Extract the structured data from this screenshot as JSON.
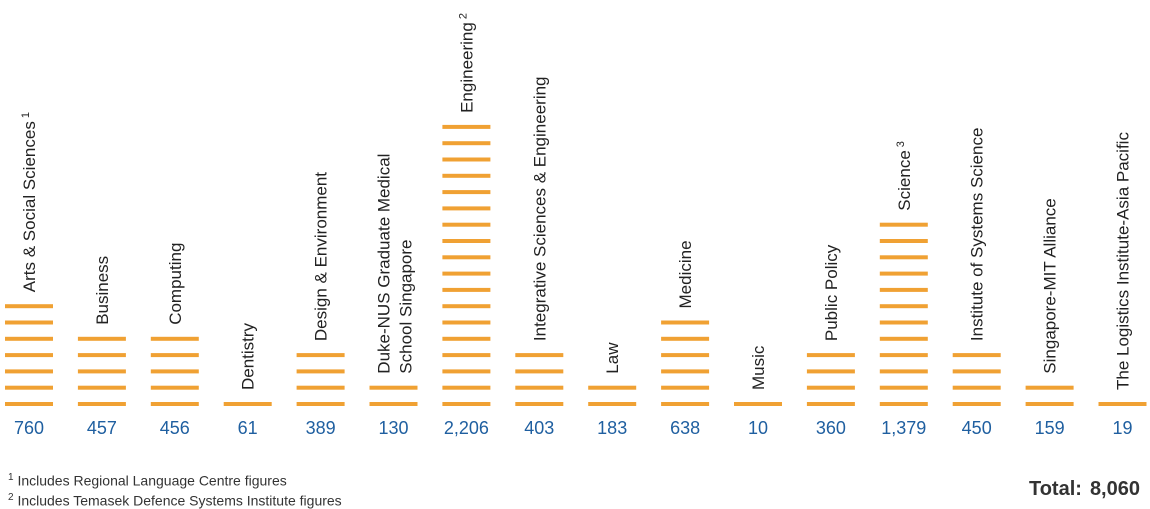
{
  "chart_data": {
    "type": "bar",
    "categories": [
      {
        "label": "Arts & Social Sciences",
        "sup": "1",
        "value": 760,
        "display": "760"
      },
      {
        "label": "Business",
        "sup": "",
        "value": 457,
        "display": "457"
      },
      {
        "label": "Computing",
        "sup": "",
        "value": 456,
        "display": "456"
      },
      {
        "label": "Dentistry",
        "sup": "",
        "value": 61,
        "display": "61"
      },
      {
        "label": "Design & Environment",
        "sup": "",
        "value": 389,
        "display": "389"
      },
      {
        "label": [
          "Duke-NUS Graduate Medical",
          "School Singapore"
        ],
        "sup": "",
        "value": 130,
        "display": "130"
      },
      {
        "label": "Engineering",
        "sup": "2",
        "value": 2206,
        "display": "2,206"
      },
      {
        "label": "Integrative Sciences & Engineering",
        "sup": "",
        "value": 403,
        "display": "403"
      },
      {
        "label": "Law",
        "sup": "",
        "value": 183,
        "display": "183"
      },
      {
        "label": "Medicine",
        "sup": "",
        "value": 638,
        "display": "638"
      },
      {
        "label": "Music",
        "sup": "",
        "value": 10,
        "display": "10"
      },
      {
        "label": "Public Policy",
        "sup": "",
        "value": 360,
        "display": "360"
      },
      {
        "label": "Science",
        "sup": "3",
        "value": 1379,
        "display": "1,379"
      },
      {
        "label": "Institute of Systems Science",
        "sup": "",
        "value": 450,
        "display": "450"
      },
      {
        "label": "Singapore-MIT Alliance",
        "sup": "",
        "value": 159,
        "display": "159"
      },
      {
        "label": "The Logistics Institute-Asia Pacific",
        "sup": "",
        "value": 19,
        "display": "19"
      }
    ],
    "units_per_stripe": 130,
    "grid": false,
    "colors": {
      "bar": "#F0A133",
      "value": "#1F5FA0",
      "label": "#222222"
    }
  },
  "footnotes": [
    {
      "mark": "1",
      "text": "Includes Regional Language Centre figures"
    },
    {
      "mark": "2",
      "text": "Includes Temasek Defence Systems Institute figures"
    }
  ],
  "total": {
    "label": "Total:",
    "value": "8,060"
  }
}
